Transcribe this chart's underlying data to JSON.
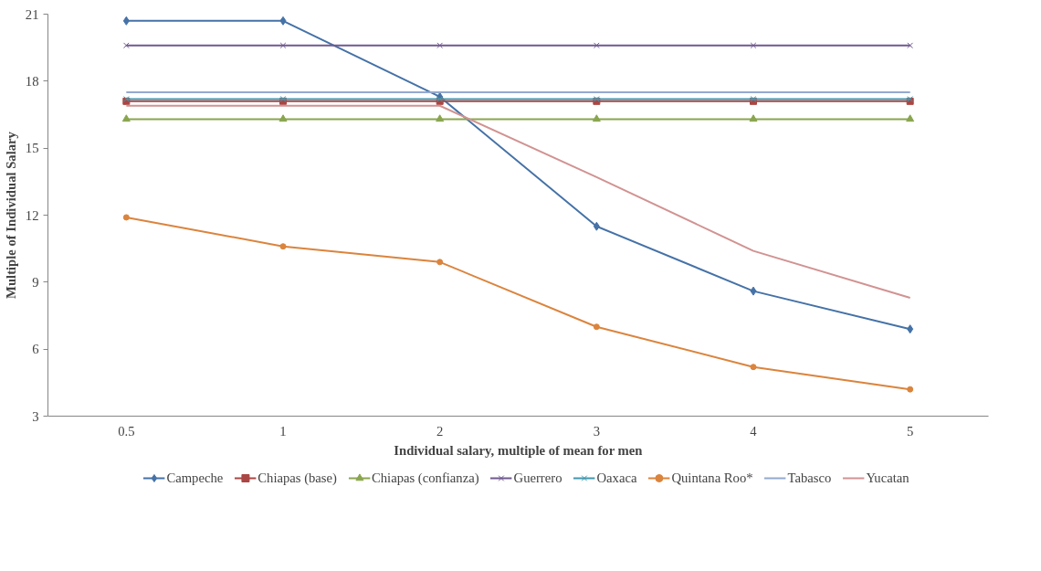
{
  "chart_data": {
    "type": "line",
    "xlabel": "Individual salary, multiple of mean for men",
    "ylabel": "Multiple of Individual Salary",
    "categories": [
      "0.5",
      "1",
      "2",
      "3",
      "4",
      "5"
    ],
    "ylim": [
      3,
      21
    ],
    "yticks": [
      3,
      6,
      9,
      12,
      15,
      18,
      21
    ],
    "grid": false,
    "legend": "bottom",
    "series": [
      {
        "name": "Campeche",
        "color": "#4572a7",
        "marker": "diamond",
        "values": [
          20.7,
          20.7,
          17.3,
          11.5,
          8.6,
          6.9
        ]
      },
      {
        "name": "Chiapas (base)",
        "color": "#aa4643",
        "marker": "square",
        "values": [
          17.1,
          17.1,
          17.1,
          17.1,
          17.1,
          17.1
        ]
      },
      {
        "name": "Chiapas (confianza)",
        "color": "#89a54e",
        "marker": "triangle",
        "values": [
          16.3,
          16.3,
          16.3,
          16.3,
          16.3,
          16.3
        ]
      },
      {
        "name": "Guerrero",
        "color": "#71588f",
        "marker": "cross",
        "values": [
          19.6,
          19.6,
          19.6,
          19.6,
          19.6,
          19.6
        ]
      },
      {
        "name": "Oaxaca",
        "color": "#4198af",
        "marker": "cross",
        "values": [
          17.2,
          17.2,
          17.2,
          17.2,
          17.2,
          17.2
        ]
      },
      {
        "name": "Quintana Roo*",
        "color": "#db843d",
        "marker": "circle",
        "values": [
          11.9,
          10.6,
          9.9,
          7.0,
          5.2,
          4.2
        ]
      },
      {
        "name": "Tabasco",
        "color": "#93a9cf",
        "marker": "none",
        "values": [
          17.5,
          17.5,
          17.5,
          17.5,
          17.5,
          17.5
        ]
      },
      {
        "name": "Yucatan",
        "color": "#d19392",
        "marker": "none",
        "values": [
          16.9,
          16.9,
          16.9,
          13.7,
          10.4,
          8.3
        ]
      }
    ]
  }
}
